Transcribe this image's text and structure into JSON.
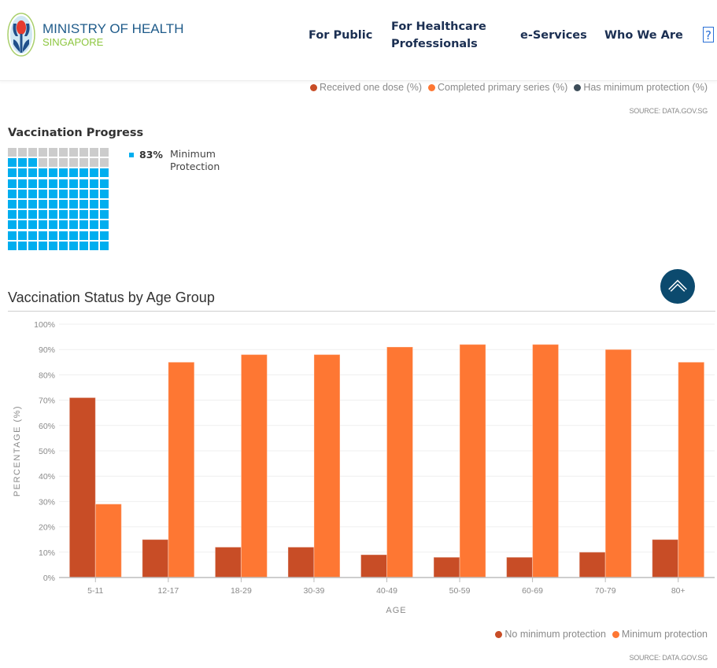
{
  "header": {
    "logo_title": "MINISTRY OF HEALTH",
    "logo_subtitle": "SINGAPORE",
    "nav": [
      {
        "label": "For Public"
      },
      {
        "label_line1": "For Healthcare",
        "label_line2": "Professionals"
      },
      {
        "label": "e-Services"
      },
      {
        "label": "Who We Are"
      }
    ],
    "help_label": "?"
  },
  "top_legend": {
    "items": [
      {
        "label": "Received one dose (%)",
        "color": "#c84d26"
      },
      {
        "label": "Completed primary series (%)",
        "color": "#fe7733"
      },
      {
        "label": "Has minimum protection (%)",
        "color": "#3d4d59"
      }
    ],
    "source": "SOURCE: DATA.GOV.SG"
  },
  "vaccination_progress": {
    "title": "Vaccination Progress",
    "percent_value": 83,
    "percent_label": "83%",
    "label": "Minimum Protection",
    "filled_color": "#00aeef",
    "empty_color": "#cccccc"
  },
  "chart_data": {
    "type": "bar",
    "title": "Vaccination Status by Age Group",
    "xlabel": "AGE",
    "ylabel": "PERCENTAGE (%)",
    "ylim": [
      0,
      100
    ],
    "yticks": [
      "0%",
      "10%",
      "20%",
      "30%",
      "40%",
      "50%",
      "60%",
      "70%",
      "80%",
      "90%",
      "100%"
    ],
    "categories": [
      "5-11",
      "12-17",
      "18-29",
      "30-39",
      "40-49",
      "50-59",
      "60-69",
      "70-79",
      "80+"
    ],
    "series": [
      {
        "name": "No minimum protection",
        "color": "#c84d26",
        "values": [
          71,
          15,
          12,
          12,
          9,
          8,
          8,
          10,
          15
        ]
      },
      {
        "name": "Minimum protection",
        "color": "#fe7733",
        "values": [
          29,
          85,
          88,
          88,
          91,
          92,
          92,
          90,
          85
        ]
      }
    ],
    "grid": true,
    "legend": "bottom-right",
    "source": "SOURCE: DATA.GOV.SG"
  }
}
